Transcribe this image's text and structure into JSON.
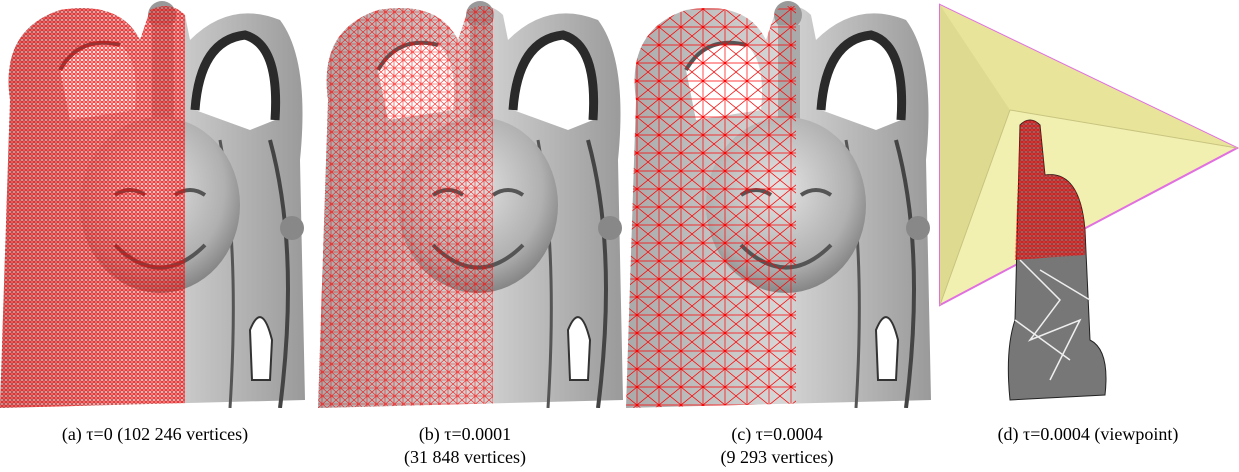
{
  "figure": {
    "panels": [
      {
        "caption": [
          "(a) τ=0 (102 246 vertices)"
        ]
      },
      {
        "caption": [
          "(b) τ=0.0001",
          "(31 848 vertices)"
        ]
      },
      {
        "caption": [
          "(c) τ=0.0004",
          "(9 293 vertices)"
        ]
      },
      {
        "caption": [
          "(d) τ=0.0004 (viewpoint)"
        ]
      }
    ]
  }
}
